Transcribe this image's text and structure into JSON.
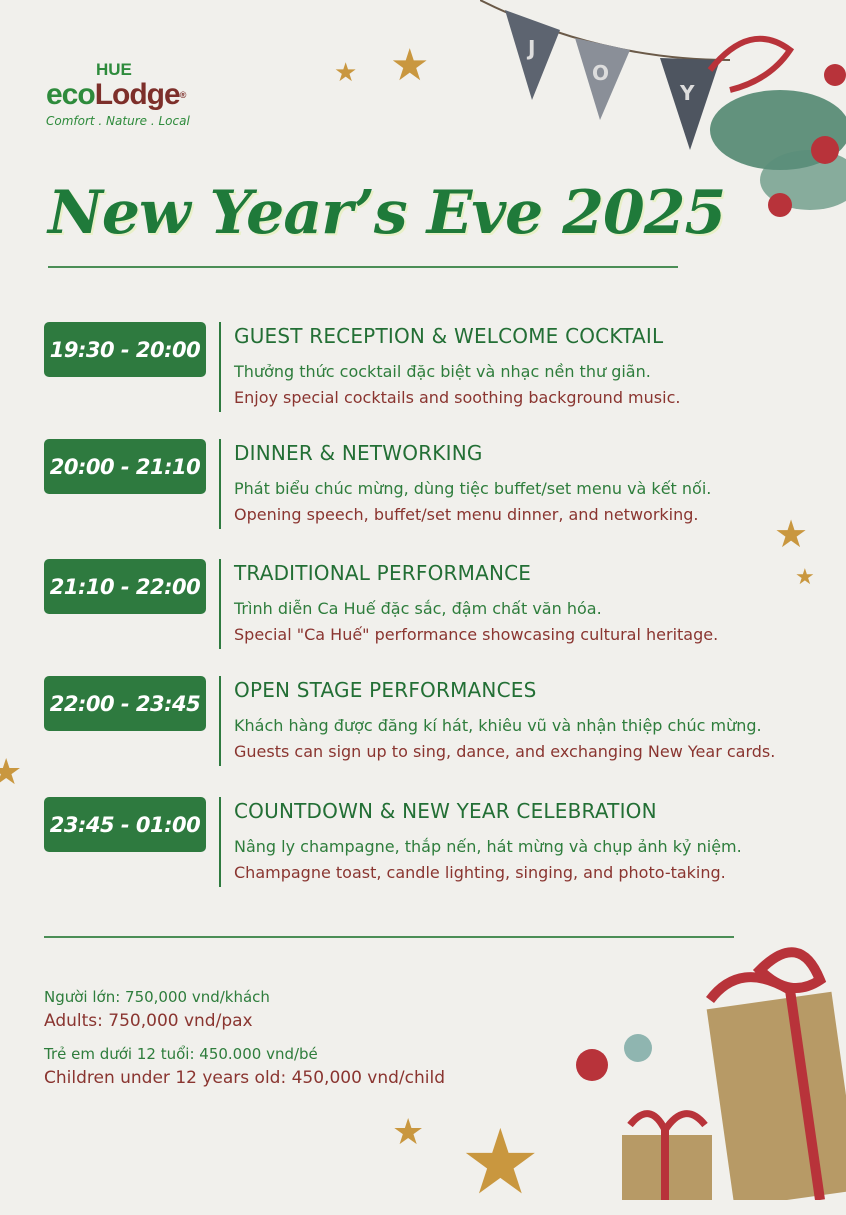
{
  "logo": {
    "top": "HUE",
    "eco": "eco",
    "lodge": "Lodge",
    "reg": "®",
    "tagline": "Comfort . Nature . Local"
  },
  "bunting": {
    "letters": [
      "J",
      "O",
      "Y"
    ]
  },
  "title": "New Year’s Eve 2025",
  "schedule": [
    {
      "time": "19:30 - 20:00",
      "title": "GUEST RECEPTION & WELCOME COCKTAIL",
      "vi": "Thưởng thức cocktail đặc biệt và nhạc nền thư giãn.",
      "en": "Enjoy special cocktails and soothing background music."
    },
    {
      "time": "20:00 - 21:10",
      "title": "DINNER & NETWORKING",
      "vi": "Phát biểu chúc mừng, dùng tiệc buffet/set menu và kết nối.",
      "en": "Opening speech, buffet/set menu dinner, and networking."
    },
    {
      "time": "21:10 - 22:00",
      "title": "TRADITIONAL PERFORMANCE",
      "vi": "Trình diễn Ca Huế đặc sắc, đậm chất văn hóa.",
      "en": "Special \"Ca Huế\" performance showcasing cultural heritage."
    },
    {
      "time": "22:00 - 23:45",
      "title": "OPEN STAGE PERFORMANCES",
      "vi": "Khách hàng được đăng kí hát, khiêu vũ và nhận thiệp chúc mừng.",
      "en": "Guests can sign up to sing, dance, and exchanging New Year cards."
    },
    {
      "time": "23:45 - 01:00",
      "title": "COUNTDOWN & NEW YEAR CELEBRATION",
      "vi": "Nâng ly champagne, thắp nến, hát mừng và chụp ảnh kỷ niệm.",
      "en": "Champagne toast, candle lighting, singing, and photo-taking."
    }
  ],
  "pricing": {
    "adult_vi": "Người lớn: 750,000 vnd/khách",
    "adult_en": "Adults: 750,000 vnd/pax",
    "child_vi": "Trẻ em dưới 12 tuổi: 450.000 vnd/bé",
    "child_en": "Children under 12 years old: 450,000 vnd/child"
  },
  "colors": {
    "green": "#2e7a3f",
    "red": "#8a3530",
    "background": "#f1f0ec"
  }
}
